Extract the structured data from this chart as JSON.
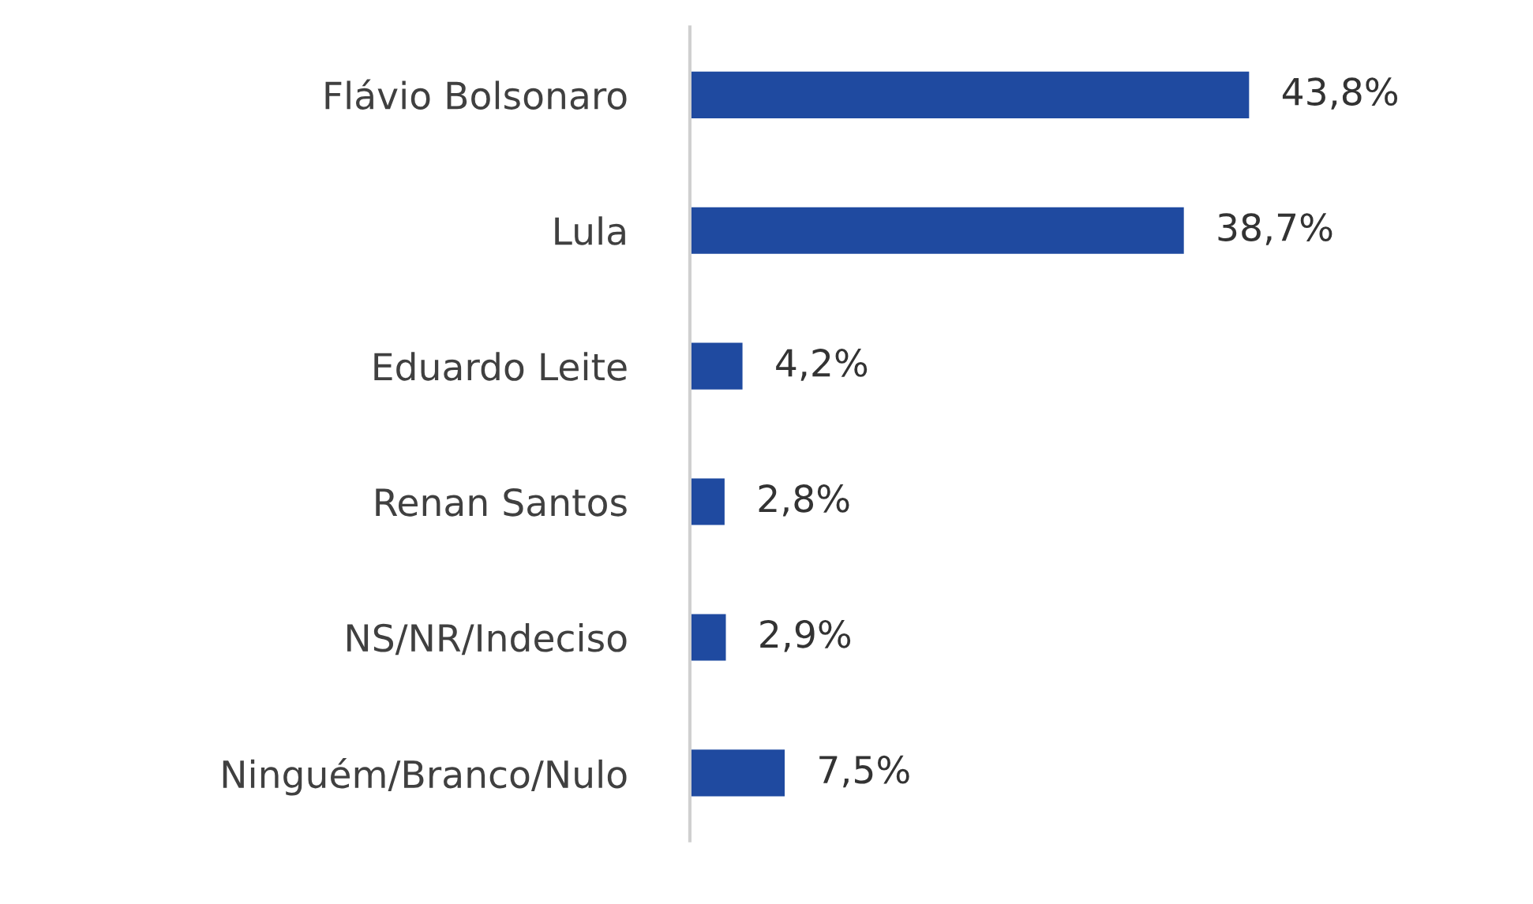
{
  "chart_data": {
    "type": "bar",
    "orientation": "horizontal",
    "categories": [
      "Flávio Bolsonaro",
      "Lula",
      "Eduardo Leite",
      "Renan Santos",
      "NS/NR/Indeciso",
      "Ninguém/Branco/Nulo"
    ],
    "values": [
      43.8,
      38.7,
      4.2,
      2.8,
      2.9,
      7.5
    ],
    "value_labels": [
      "43,8%",
      "38,7%",
      "4,2%",
      "2,8%",
      "2,9%",
      "7,5%"
    ],
    "color": "#1f4aa0",
    "grid": false,
    "legend": false
  }
}
